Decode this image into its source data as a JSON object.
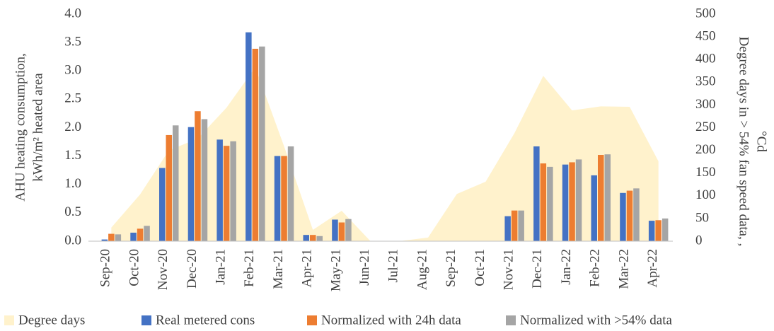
{
  "chart_data": {
    "type": "bar",
    "y_label": [
      "AHU heating consumption,",
      "kWh/m² heated area"
    ],
    "y2_label": [
      "Degree days in > 54% fan speed data, ,",
      "°Cd"
    ],
    "categories": [
      "Sep-20",
      "Oct-20",
      "Nov-20",
      "Dec-20",
      "Jan-21",
      "Feb-21",
      "Mar-21",
      "Apr-21",
      "May-21",
      "Jun-21",
      "Jul-21",
      "Aug-21",
      "Sep-21",
      "Oct-21",
      "Nov-21",
      "Dec-21",
      "Jan-22",
      "Feb-22",
      "Mar-22",
      "Apr-22"
    ],
    "series": [
      {
        "name": "Degree days",
        "type": "area",
        "axis": "y2",
        "color": "#fff2cc",
        "values": [
          30,
          103,
          200,
          226,
          294,
          383,
          209,
          25,
          67,
          0,
          0,
          8,
          104,
          131,
          238,
          364,
          288,
          297,
          296,
          176
        ]
      },
      {
        "name": "Real metered cons",
        "color": "#4472c4",
        "values": [
          0.03,
          0.15,
          1.29,
          2.01,
          1.79,
          3.68,
          1.5,
          0.11,
          0.38,
          0,
          0,
          0,
          0,
          0,
          0.44,
          1.67,
          1.35,
          1.16,
          0.85,
          0.36
        ]
      },
      {
        "name": "Normalized with 24h data",
        "color": "#ed7d31",
        "values": [
          0.13,
          0.22,
          1.87,
          2.29,
          1.68,
          3.39,
          1.5,
          0.11,
          0.33,
          0,
          0,
          0,
          0,
          0,
          0.54,
          1.37,
          1.39,
          1.52,
          0.89,
          0.37
        ]
      },
      {
        "name": "Normalized with >54% data",
        "color": "#a5a5a5",
        "values": [
          0.12,
          0.27,
          2.04,
          2.15,
          1.76,
          3.43,
          1.67,
          0.09,
          0.39,
          0,
          0,
          0,
          0,
          0,
          0.54,
          1.31,
          1.44,
          1.53,
          0.93,
          0.4
        ]
      }
    ],
    "ylim": [
      0,
      4
    ],
    "yticks": [
      {
        "value": 0,
        "label": "0.0"
      },
      0.5,
      {
        "value": 1,
        "label": "1.0"
      },
      1.5,
      {
        "value": 2,
        "label": "2.0"
      },
      2.5,
      {
        "value": 3,
        "label": "3.0"
      },
      3.5,
      {
        "value": 4,
        "label": "4.0"
      }
    ],
    "y2lim": [
      0,
      500
    ],
    "y2ticks": [
      0,
      50,
      100,
      150,
      200,
      250,
      300,
      350,
      400,
      450,
      500
    ],
    "legend": "bottom"
  }
}
